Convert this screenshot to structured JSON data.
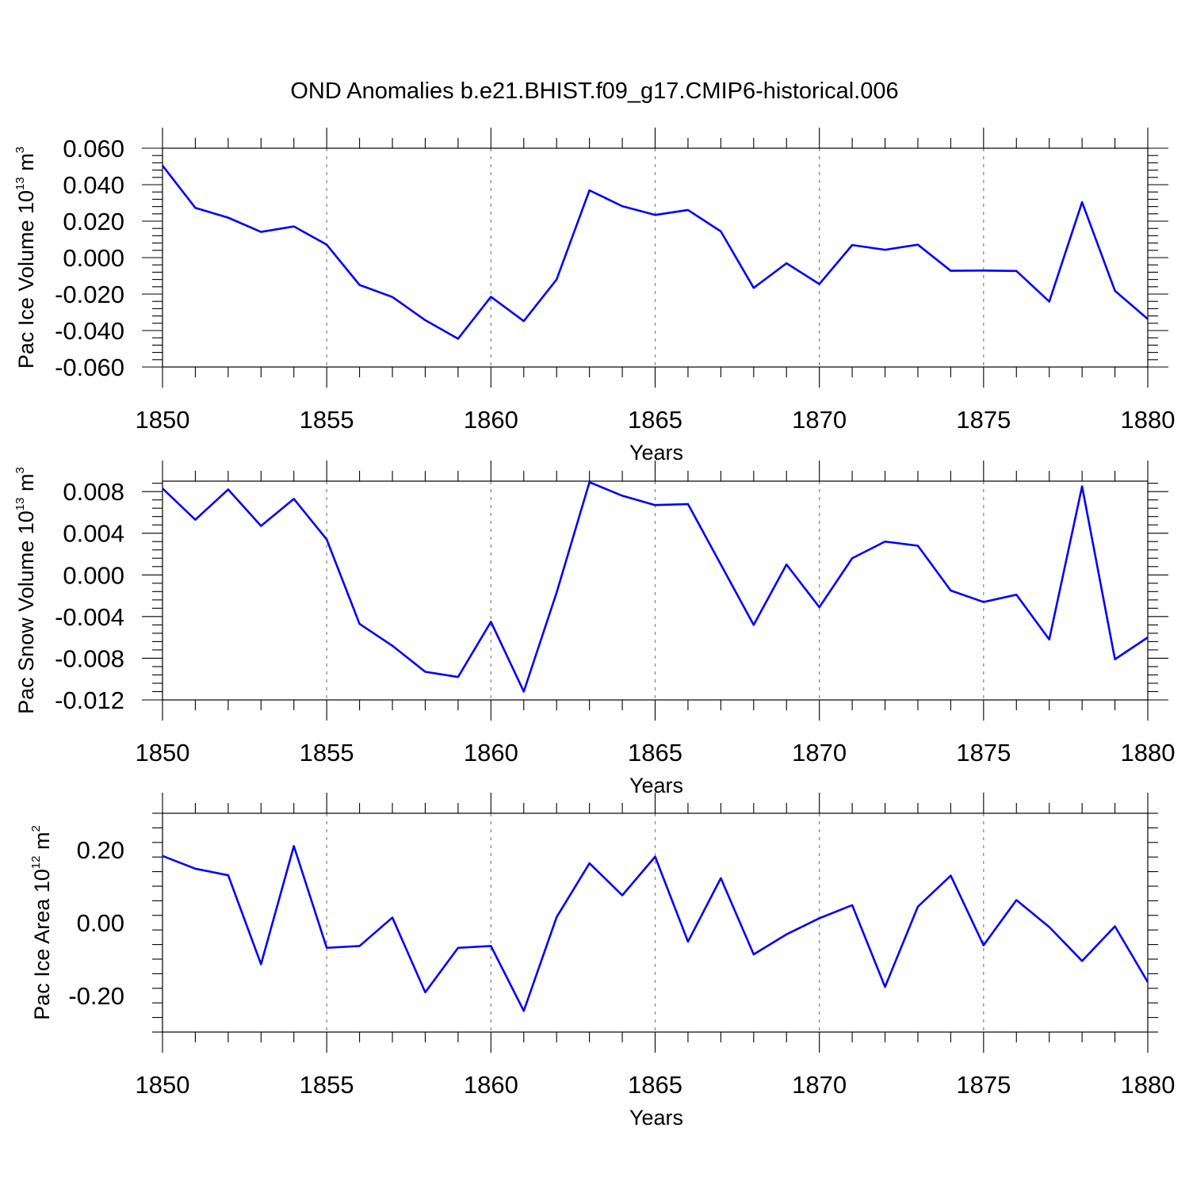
{
  "title": "OND Anomalies b.e21.BHIST.f09_g17.CMIP6-historical.006",
  "colors": {
    "line": "#0000ff",
    "axis": "#000000",
    "grid": "#8a8a8a"
  },
  "chart_data": [
    {
      "type": "line",
      "title": "OND Anomalies b.e21.BHIST.f09_g17.CMIP6-historical.006",
      "xlabel": "Years",
      "ylabel": "Pac Ice Volume 10",
      "ylabel_exponent": "13",
      "ylabel_unit": "m",
      "ylabel_unit_exponent": "3",
      "xlim": [
        1850,
        1880
      ],
      "ylim": [
        -0.06,
        0.06
      ],
      "x_ticks": [
        "1850",
        "1855",
        "1860",
        "1865",
        "1870",
        "1875",
        "1880"
      ],
      "y_ticks": [
        -0.06,
        -0.04,
        -0.02,
        0.0,
        0.02,
        0.04,
        0.06
      ],
      "y_tick_labels": [
        "-0.060",
        "-0.040",
        "-0.020",
        "0.000",
        "0.020",
        "0.040",
        "0.060"
      ],
      "x": [
        1850,
        1851,
        1852,
        1853,
        1854,
        1855,
        1856,
        1857,
        1858,
        1859,
        1860,
        1861,
        1862,
        1863,
        1864,
        1865,
        1866,
        1867,
        1868,
        1869,
        1870,
        1871,
        1872,
        1873,
        1874,
        1875,
        1876,
        1877,
        1878,
        1879,
        1880
      ],
      "series": [
        {
          "name": "Pac Ice Volume",
          "values": [
            0.0505,
            0.0273,
            0.0219,
            0.0141,
            0.0171,
            0.0071,
            -0.015,
            -0.0216,
            -0.0343,
            -0.0445,
            -0.0215,
            -0.0348,
            -0.012,
            0.0369,
            0.0282,
            0.0234,
            0.0261,
            0.0144,
            -0.0166,
            -0.0031,
            -0.0145,
            0.0069,
            0.0043,
            0.0071,
            -0.0072,
            -0.0071,
            -0.0073,
            -0.0241,
            0.0304,
            -0.0182,
            -0.0337
          ]
        }
      ]
    },
    {
      "type": "line",
      "xlabel": "Years",
      "ylabel": "Pac Snow Volume 10",
      "ylabel_exponent": "13",
      "ylabel_unit": "m",
      "ylabel_unit_exponent": "3",
      "xlim": [
        1850,
        1880
      ],
      "ylim": [
        -0.012,
        0.009
      ],
      "x_ticks": [
        "1850",
        "1855",
        "1860",
        "1865",
        "1870",
        "1875",
        "1880"
      ],
      "y_ticks": [
        -0.012,
        -0.008,
        -0.004,
        0.0,
        0.004,
        0.008
      ],
      "y_tick_labels": [
        "-0.012",
        "-0.008",
        "-0.004",
        "0.000",
        "0.004",
        "0.008"
      ],
      "x": [
        1850,
        1851,
        1852,
        1853,
        1854,
        1855,
        1856,
        1857,
        1858,
        1859,
        1860,
        1861,
        1862,
        1863,
        1864,
        1865,
        1866,
        1867,
        1868,
        1869,
        1870,
        1871,
        1872,
        1873,
        1874,
        1875,
        1876,
        1877,
        1878,
        1879,
        1880
      ],
      "series": [
        {
          "name": "Pac Snow Volume",
          "values": [
            0.0083,
            0.0053,
            0.0082,
            0.0047,
            0.0073,
            0.0034,
            -0.0047,
            -0.0068,
            -0.0093,
            -0.0098,
            -0.0045,
            -0.0112,
            -0.0017,
            0.0089,
            0.0076,
            0.0067,
            0.0068,
            0.001,
            -0.0048,
            0.001,
            -0.0031,
            0.0016,
            0.0032,
            0.0028,
            -0.0015,
            -0.0026,
            -0.0019,
            -0.0062,
            0.0085,
            -0.0081,
            -0.006
          ]
        }
      ]
    },
    {
      "type": "line",
      "xlabel": "Years",
      "ylabel": "Pac Ice Area 10",
      "ylabel_exponent": "12",
      "ylabel_unit": "m",
      "ylabel_unit_exponent": "2",
      "xlim": [
        1850,
        1880
      ],
      "ylim": [
        -0.3,
        0.3
      ],
      "x_ticks": [
        "1850",
        "1855",
        "1860",
        "1865",
        "1870",
        "1875",
        "1880"
      ],
      "y_ticks": [
        -0.2,
        0.0,
        0.2
      ],
      "y_tick_labels": [
        "-0.20",
        "0.00",
        "0.20"
      ],
      "x": [
        1850,
        1851,
        1852,
        1853,
        1854,
        1855,
        1856,
        1857,
        1858,
        1859,
        1860,
        1861,
        1862,
        1863,
        1864,
        1865,
        1866,
        1867,
        1868,
        1869,
        1870,
        1871,
        1872,
        1873,
        1874,
        1875,
        1876,
        1877,
        1878,
        1879,
        1880
      ],
      "series": [
        {
          "name": "Pac Ice Area",
          "values": [
            0.183,
            0.148,
            0.13,
            -0.114,
            0.21,
            -0.069,
            -0.064,
            0.014,
            -0.191,
            -0.069,
            -0.064,
            -0.242,
            0.015,
            0.163,
            0.075,
            0.181,
            -0.052,
            0.122,
            -0.087,
            -0.032,
            0.012,
            0.048,
            -0.176,
            0.044,
            0.129,
            -0.062,
            0.062,
            -0.012,
            -0.105,
            -0.01,
            -0.163
          ]
        }
      ]
    }
  ]
}
